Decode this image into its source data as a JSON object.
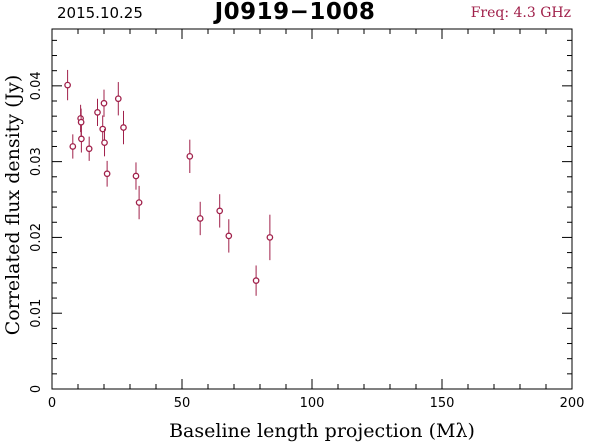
{
  "header": {
    "date": "2015.10.25",
    "source": "J0919−1008",
    "freq_label": "Freq: 4.3 GHz"
  },
  "colors": {
    "accent": "#a0204a",
    "axis": "#000000"
  },
  "chart_data": {
    "type": "scatter",
    "title": "J0919−1008",
    "xlabel": "Baseline length projection (Mλ)",
    "ylabel": "Correlated flux density (Jy)",
    "xlim": [
      0,
      200
    ],
    "ylim": [
      0,
      0.0475
    ],
    "x_ticks": [
      0,
      50,
      100,
      150,
      200
    ],
    "y_ticks": [
      0,
      0.01,
      0.02,
      0.03,
      0.04
    ],
    "x_tick_labels": [
      "0",
      "50",
      "100",
      "150",
      "200"
    ],
    "y_tick_labels": [
      "0",
      "0.01",
      "0.02",
      "0.03",
      "0.04"
    ],
    "grid": false,
    "series": [
      {
        "points": [
          {
            "x": 6.0,
            "y": 0.0401,
            "err": 0.002
          },
          {
            "x": 8.0,
            "y": 0.032,
            "err": 0.0016
          },
          {
            "x": 11.0,
            "y": 0.0357,
            "err": 0.0018
          },
          {
            "x": 11.2,
            "y": 0.0352,
            "err": 0.0018
          },
          {
            "x": 11.3,
            "y": 0.033,
            "err": 0.0018
          },
          {
            "x": 14.3,
            "y": 0.0317,
            "err": 0.0016
          },
          {
            "x": 17.5,
            "y": 0.0365,
            "err": 0.0018
          },
          {
            "x": 19.5,
            "y": 0.0343,
            "err": 0.0018
          },
          {
            "x": 20.0,
            "y": 0.0377,
            "err": 0.0018
          },
          {
            "x": 20.2,
            "y": 0.0325,
            "err": 0.0018
          },
          {
            "x": 21.2,
            "y": 0.0284,
            "err": 0.0017
          },
          {
            "x": 25.5,
            "y": 0.0383,
            "err": 0.0022
          },
          {
            "x": 27.5,
            "y": 0.0345,
            "err": 0.0022
          },
          {
            "x": 32.3,
            "y": 0.0281,
            "err": 0.0018
          },
          {
            "x": 33.5,
            "y": 0.0246,
            "err": 0.0022
          },
          {
            "x": 53.0,
            "y": 0.0307,
            "err": 0.0022
          },
          {
            "x": 57.0,
            "y": 0.0225,
            "err": 0.0022
          },
          {
            "x": 64.5,
            "y": 0.0235,
            "err": 0.0022
          },
          {
            "x": 68.0,
            "y": 0.0202,
            "err": 0.0022
          },
          {
            "x": 78.5,
            "y": 0.0143,
            "err": 0.002
          },
          {
            "x": 83.8,
            "y": 0.02,
            "err": 0.003
          }
        ]
      }
    ]
  }
}
